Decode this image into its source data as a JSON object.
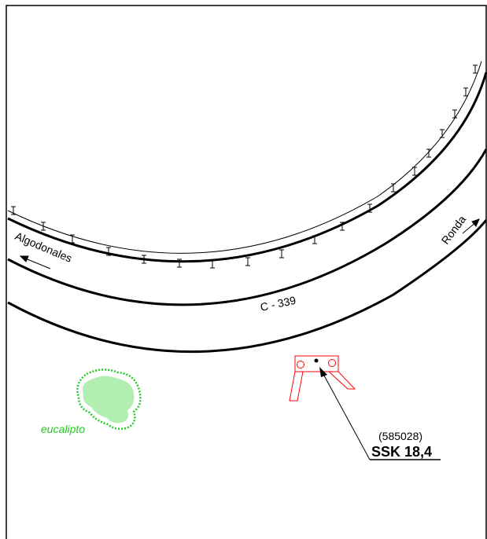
{
  "labels": {
    "road_code": "C - 339",
    "direction_left": "Algodonales",
    "direction_right": "Ronda",
    "vegetation": "eucalipto",
    "station_number": "(585028)",
    "station_id": "SSK 18,4"
  },
  "colors": {
    "road": "#000000",
    "station_symbol": "#ff0000",
    "vegetation": "#22cc22",
    "background": "#ffffff"
  },
  "icons": {
    "guardrail_post": "guardrail-post-icon",
    "station": "survey-station-icon",
    "tree": "eucalyptus-tree-icon"
  }
}
